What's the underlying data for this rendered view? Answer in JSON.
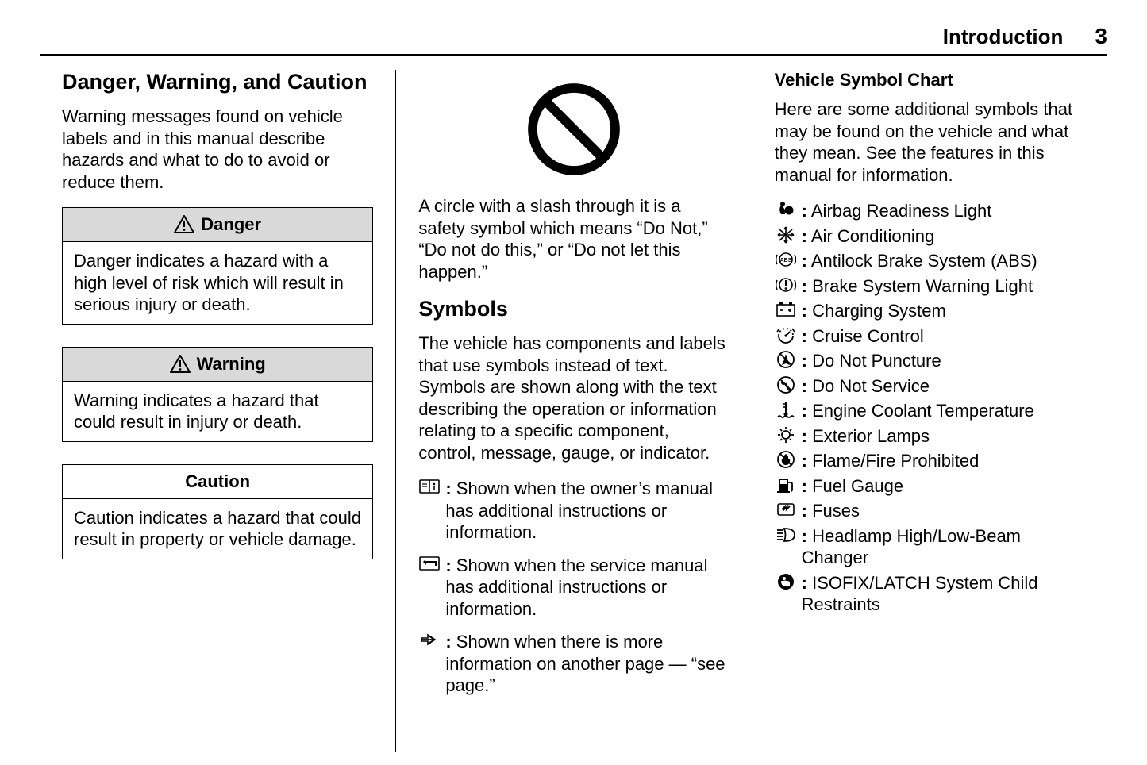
{
  "header": {
    "title": "Introduction",
    "page": "3"
  },
  "col1": {
    "heading": "Danger, Warning, and Caution",
    "intro": "Warning messages found on vehicle labels and in this manual describe hazards and what to do to avoid or reduce them.",
    "danger": {
      "title": "Danger",
      "body": "Danger indicates a hazard with a high level of risk which will result in serious injury or death."
    },
    "warning": {
      "title": "Warning",
      "body": "Warning indicates a hazard that could result in injury or death."
    },
    "caution": {
      "title": "Caution",
      "body": "Caution indicates a hazard that could result in property or vehicle damage."
    }
  },
  "col2": {
    "nosign_text": "A circle with a slash through it is a safety symbol which means “Do Not,” “Do not do this,” or “Do not let this happen.”",
    "symbols_heading": "Symbols",
    "symbols_intro": "The vehicle has components and labels that use symbols instead of text. Symbols are shown along with the text describing the operation or information relating to a specific component, control, message, gauge, or indicator.",
    "items": [
      {
        "icon": "owners-manual-icon",
        "text": "Shown when the owner’s manual has additional instructions or information."
      },
      {
        "icon": "service-manual-icon",
        "text": "Shown when the service manual has additional instructions or information."
      },
      {
        "icon": "see-page-arrow-icon",
        "text": "Shown when there is more information on another page — “see page.”"
      }
    ]
  },
  "col3": {
    "heading": "Vehicle Symbol Chart",
    "intro": "Here are some additional symbols that may be found on the vehicle and what they mean. See the features in this manual for information.",
    "items": [
      {
        "icon": "airbag-readiness-icon",
        "text": "Airbag Readiness Light"
      },
      {
        "icon": "air-conditioning-icon",
        "text": "Air Conditioning"
      },
      {
        "icon": "abs-icon",
        "text": "Antilock Brake System (ABS)"
      },
      {
        "icon": "brake-warning-icon",
        "text": "Brake System Warning Light"
      },
      {
        "icon": "charging-system-icon",
        "text": "Charging System"
      },
      {
        "icon": "cruise-control-icon",
        "text": "Cruise Control"
      },
      {
        "icon": "do-not-puncture-icon",
        "text": "Do Not Puncture"
      },
      {
        "icon": "do-not-service-icon",
        "text": "Do Not Service"
      },
      {
        "icon": "coolant-temp-icon",
        "text": "Engine Coolant Temperature"
      },
      {
        "icon": "exterior-lamps-icon",
        "text": "Exterior Lamps"
      },
      {
        "icon": "flame-prohibited-icon",
        "text": "Flame/Fire Prohibited"
      },
      {
        "icon": "fuel-gauge-icon",
        "text": "Fuel Gauge"
      },
      {
        "icon": "fuses-icon",
        "text": "Fuses"
      },
      {
        "icon": "headlamp-beam-icon",
        "text": "Headlamp High/Low-Beam Changer"
      },
      {
        "icon": "isofix-latch-icon",
        "text": "ISOFIX/LATCH System Child Restraints"
      }
    ]
  },
  "style": {
    "page_bg": "#ffffff",
    "text_color": "#000000",
    "box_header_bg": "#d9d9d9",
    "border_color": "#000000",
    "body_fontsize": 22,
    "heading_fontsize": 27
  }
}
